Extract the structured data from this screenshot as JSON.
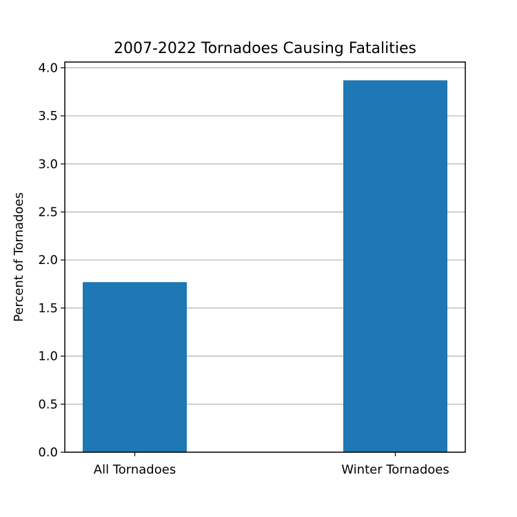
{
  "chart_data": {
    "type": "bar",
    "title": "2007-2022 Tornadoes Causing Fatalities",
    "xlabel": "",
    "ylabel": "Percent of Tornadoes",
    "categories": [
      "All Tornadoes",
      "Winter Tornadoes"
    ],
    "values": [
      1.77,
      3.87
    ],
    "ylim": [
      0,
      4.06
    ],
    "yticks": [
      0.0,
      0.5,
      1.0,
      1.5,
      2.0,
      2.5,
      3.0,
      3.5,
      4.0
    ],
    "ytick_labels": [
      "0.0",
      "0.5",
      "1.0",
      "1.5",
      "2.0",
      "2.5",
      "3.0",
      "3.5",
      "4.0"
    ],
    "bar_color": "#1f77b4",
    "grid": "y-axis",
    "legend": "none"
  }
}
